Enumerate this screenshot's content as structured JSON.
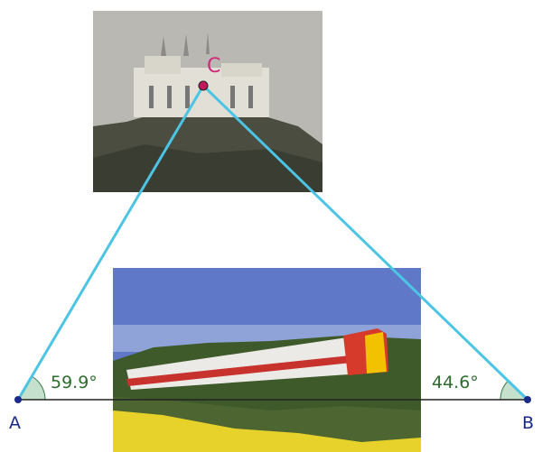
{
  "points": {
    "A": "A",
    "B": "B",
    "C": "C"
  },
  "angles": {
    "A": "59.9°",
    "B": "44.6°"
  }
}
